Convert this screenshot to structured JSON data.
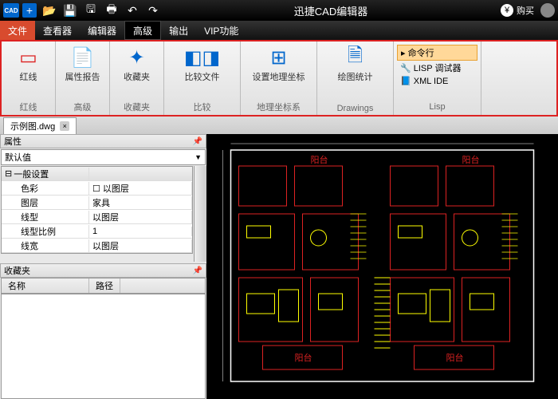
{
  "titlebar": {
    "logo": "CAD",
    "title": "迅捷CAD编辑器",
    "buy": "购买"
  },
  "menu": {
    "items": [
      "文件",
      "查看器",
      "编辑器",
      "高级",
      "输出",
      "VIP功能"
    ],
    "activeIdx": 0,
    "selIdx": 3
  },
  "ribbon": {
    "groups": [
      {
        "lbl1": "红线",
        "lbl2": "红线",
        "icon": "▭",
        "color": "#d22"
      },
      {
        "lbl1": "属性报告",
        "lbl2": "高级",
        "icon": "📄",
        "color": "#3a3"
      },
      {
        "lbl1": "收藏夹",
        "lbl2": "收藏夹",
        "icon": "✦",
        "color": "#06c"
      },
      {
        "lbl1": "比较文件",
        "lbl2": "比较",
        "icon": "◧◨",
        "color": "#06c"
      },
      {
        "lbl1": "设置地理坐标",
        "lbl2": "地理坐标系",
        "icon": "⊞",
        "color": "#06c"
      },
      {
        "lbl1": "绘图统计",
        "lbl2": "Drawings",
        "icon": "🗎",
        "color": "#06c"
      }
    ],
    "lisp": {
      "cmd": "命令行",
      "debug": "LISP 调试器",
      "xml": "XML IDE",
      "lbl": "Lisp"
    }
  },
  "filetab": "示例图.dwg",
  "props": {
    "title": "属性",
    "default": "默认值",
    "section": "一般设置",
    "rows": [
      {
        "k": "色彩",
        "v": "以图层",
        "chk": true
      },
      {
        "k": "图层",
        "v": "家具"
      },
      {
        "k": "线型",
        "v": "以图层"
      },
      {
        "k": "线型比例",
        "v": "1"
      },
      {
        "k": "线宽",
        "v": "以图层"
      }
    ]
  },
  "fav": {
    "title": "收藏夹",
    "cols": [
      "名称",
      "路径"
    ]
  },
  "cad": {
    "outline": "#fff",
    "room": "#d22",
    "furn": "#ff0",
    "stair": "#ff0",
    "text": "#0ff",
    "labels": [
      "阳台",
      "阳台",
      "阳台"
    ]
  }
}
